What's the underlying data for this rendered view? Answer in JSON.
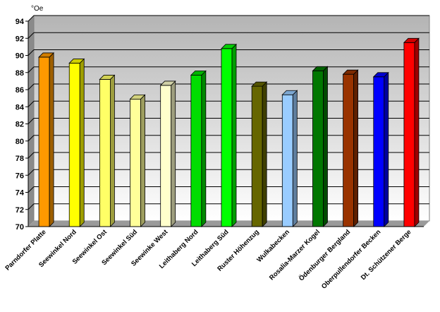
{
  "chart_data": {
    "type": "bar",
    "title": "",
    "xlabel": "",
    "ylabel": "°Oe",
    "ylim": [
      70,
      94
    ],
    "ytick_step": 2,
    "grid": true,
    "style": "3d",
    "categories": [
      "Parndorfer Platte",
      "Seewinkel Nord",
      "Seewinkel Ost",
      "Seewinkel Süd",
      "Seewinke West",
      "Leithaberg Nord",
      "Leithaberg Süd",
      "Ruster Höhenzug",
      "Wulkabecken",
      "Rosalia-Marzer Kogel",
      "Ödenburger Bergland",
      "Oberpullendorfer Becken",
      "Dt. Schützener Berge"
    ],
    "values": [
      89.8,
      89.1,
      87.2,
      84.9,
      86.5,
      87.7,
      90.8,
      86.4,
      85.4,
      88.2,
      87.8,
      87.5,
      91.5
    ],
    "colors": [
      "#FF9900",
      "#FFFF00",
      "#FFFF66",
      "#FFFF99",
      "#FFFFCC",
      "#00DD00",
      "#00FF00",
      "#666600",
      "#99CCFF",
      "#007700",
      "#993300",
      "#0000FF",
      "#FF0000"
    ]
  }
}
